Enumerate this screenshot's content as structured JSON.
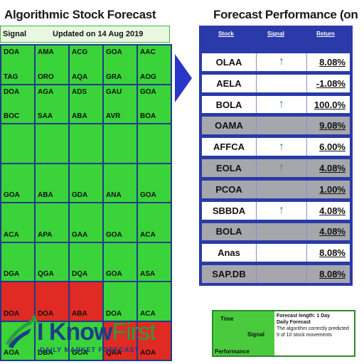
{
  "header": {
    "left_title": "Algorithmic Stock Forecast",
    "right_title": "Forecast Performance (on"
  },
  "heatmap": {
    "header_left": "Signal",
    "header_right": "Updated on 14 Aug 2019",
    "rows": [
      [
        {
          "t": "DOA",
          "b": "TAG",
          "c": "green"
        },
        {
          "t": "AMA",
          "b": "ORO",
          "c": "green"
        },
        {
          "t": "ACG",
          "b": "AQA",
          "c": "green"
        },
        {
          "t": "GOA",
          "b": "GRA",
          "c": "green"
        },
        {
          "t": "AAC",
          "b": "AOG",
          "c": "green"
        }
      ],
      [
        {
          "t": "DOA",
          "b": "BOC",
          "c": "green"
        },
        {
          "t": "AGA",
          "b": "SAA",
          "c": "green"
        },
        {
          "t": "ADS",
          "b": "ABA",
          "c": "green"
        },
        {
          "t": "GAU",
          "b": "AVR",
          "c": "green"
        },
        {
          "t": "GOA",
          "b": "BOA",
          "c": "green"
        }
      ],
      [
        {
          "t": "",
          "b": "",
          "c": "green"
        },
        {
          "t": "",
          "b": "",
          "c": "green"
        },
        {
          "t": "",
          "b": "",
          "c": "green"
        },
        {
          "t": "",
          "b": "",
          "c": "green"
        },
        {
          "t": "",
          "b": "",
          "c": "green"
        }
      ],
      [
        {
          "t": "",
          "b": "GOA",
          "c": "green"
        },
        {
          "t": "",
          "b": "ABA",
          "c": "green"
        },
        {
          "t": "",
          "b": "GDA",
          "c": "green"
        },
        {
          "t": "",
          "b": "ANA",
          "c": "green"
        },
        {
          "t": "",
          "b": "GOA",
          "c": "green"
        }
      ],
      [
        {
          "t": "",
          "b": "ACA",
          "c": "green"
        },
        {
          "t": "",
          "b": "APA",
          "c": "green"
        },
        {
          "t": "",
          "b": "GAA",
          "c": "green"
        },
        {
          "t": "",
          "b": "GOA",
          "c": "green"
        },
        {
          "t": "",
          "b": "ACA",
          "c": "green"
        }
      ],
      [
        {
          "t": "",
          "b": "DGA",
          "c": "green"
        },
        {
          "t": "",
          "b": "QGA",
          "c": "green"
        },
        {
          "t": "",
          "b": "DQA",
          "c": "green"
        },
        {
          "t": "",
          "b": "GOA",
          "c": "green"
        },
        {
          "t": "",
          "b": "ASA",
          "c": "green"
        }
      ],
      [
        {
          "t": "",
          "b": "DOA",
          "c": "red"
        },
        {
          "t": "",
          "b": "DOA",
          "c": "red"
        },
        {
          "t": "",
          "b": "ABA",
          "c": "red"
        },
        {
          "t": "",
          "b": "DOA",
          "c": "green"
        },
        {
          "t": "",
          "b": "ACA",
          "c": "green"
        }
      ],
      [
        {
          "t": "",
          "b": "AOA",
          "c": "green"
        },
        {
          "t": "",
          "b": "DBA",
          "c": "green"
        },
        {
          "t": "",
          "b": "GOA",
          "c": "green"
        },
        {
          "t": "",
          "b": "QAA",
          "c": "red"
        },
        {
          "t": "",
          "b": "AOA",
          "c": "red"
        }
      ]
    ]
  },
  "perf": {
    "headers": [
      "Stock",
      "Signal",
      "Return"
    ],
    "rows": [
      {
        "sym": "OLAA",
        "dir": "↑",
        "pct": "8.08%",
        "shade": "white"
      },
      {
        "sym": "AELA",
        "dir": "",
        "pct": "-1.08%",
        "shade": "white"
      },
      {
        "sym": "BOLA",
        "dir": "↑",
        "pct": "100.0%",
        "shade": "white"
      },
      {
        "sym": "OAMA",
        "dir": "",
        "pct": "9.08%",
        "shade": "gray"
      },
      {
        "sym": "AFFCA",
        "dir": "↑",
        "pct": "6.00%",
        "shade": "white"
      },
      {
        "sym": "EOLA",
        "dir": "↑",
        "pct": "4.08%",
        "shade": "gray"
      },
      {
        "sym": "PCOA",
        "dir": "",
        "pct": "1.00%",
        "shade": "gray"
      },
      {
        "sym": "SBBDA",
        "dir": "↑",
        "pct": "4.08%",
        "shade": "white"
      },
      {
        "sym": "BOLA",
        "dir": "",
        "pct": "4.08%",
        "shade": "gray"
      },
      {
        "sym": "Anas",
        "dir": "",
        "pct": "8.08%",
        "shade": "white"
      },
      {
        "sym": "SAP.DB",
        "dir": "",
        "pct": "8.08%",
        "shade": "gray"
      }
    ]
  },
  "logo": {
    "brand_a": "I Know",
    "brand_b": "First",
    "tagline": "DAILY MARKET FORECAST"
  },
  "legend": {
    "left_top": "Time",
    "left_mid": "Signal",
    "left_bottom": "Performance",
    "right_1": "Forecast length: 1 Day",
    "right_2": "Daily Forecast",
    "right_3": "The algorithm correctly predicted 9 of 10 stock movements"
  },
  "colors": {
    "green": "#3ad33a",
    "red": "#e02a24",
    "blue": "#2a3aa8",
    "gray": "#a6a7ad"
  }
}
